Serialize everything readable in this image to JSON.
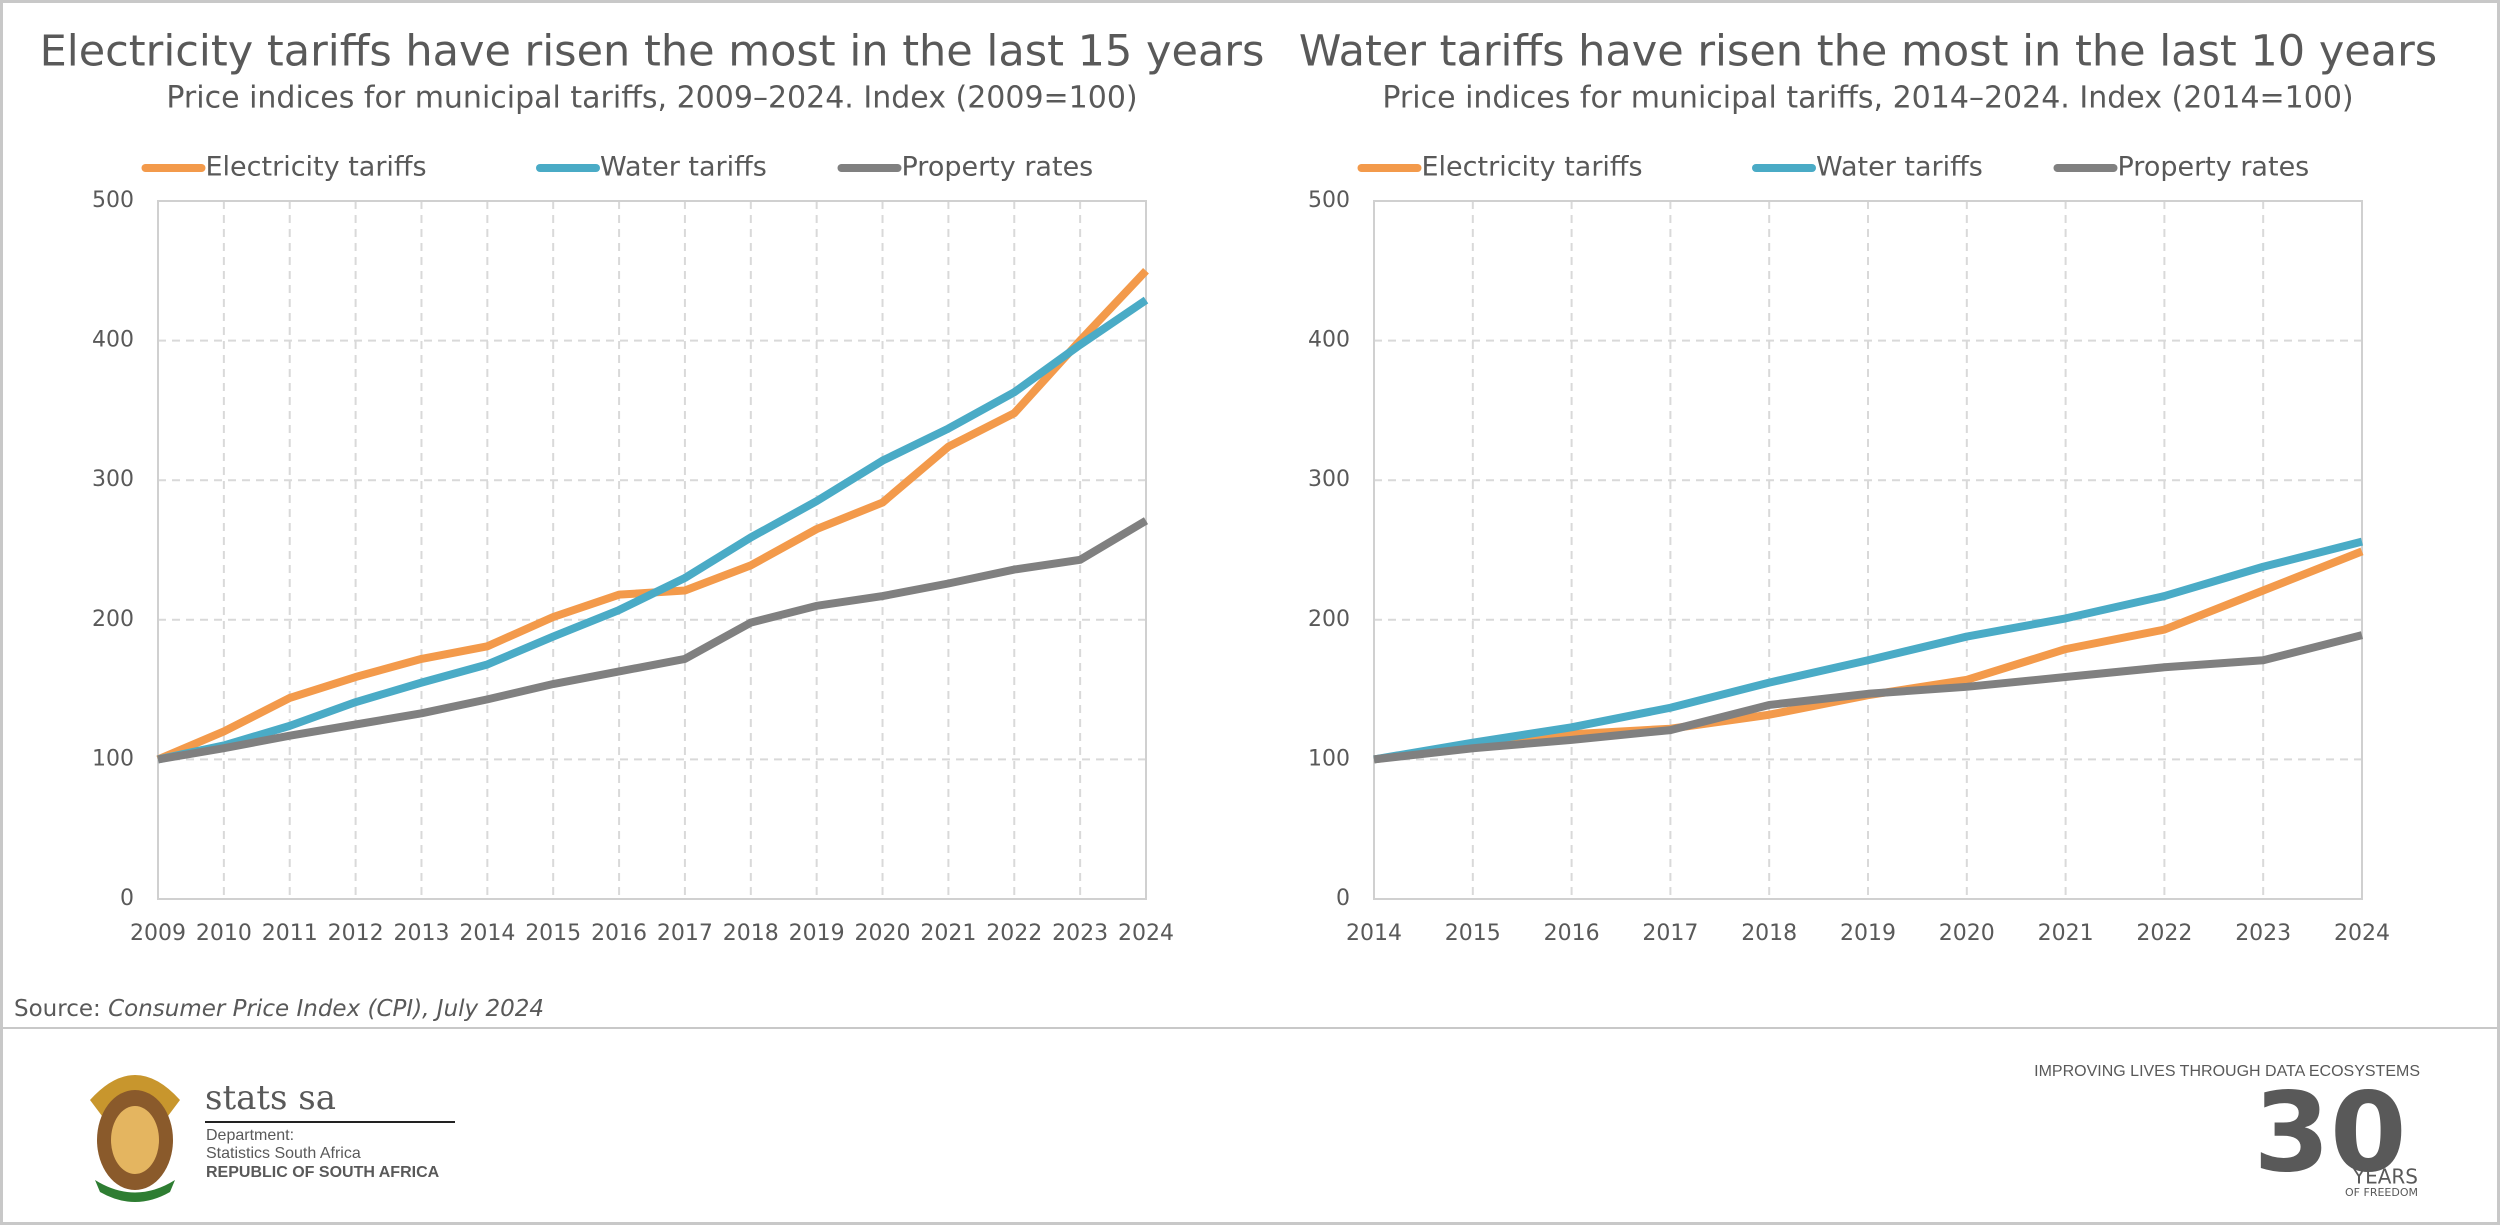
{
  "chart_data": [
    {
      "type": "line",
      "title": "Electricity tariffs have risen the most in the last 15 years",
      "subtitle": "Price indices for municipal tariffs, 2009–2024. Index (2009=100)",
      "x": [
        2009,
        2010,
        2011,
        2012,
        2013,
        2014,
        2015,
        2016,
        2017,
        2018,
        2019,
        2020,
        2021,
        2022,
        2023,
        2024
      ],
      "series": [
        {
          "name": "Electricity tariffs",
          "color": "#f39a4b",
          "values": [
            100,
            120,
            144,
            159,
            172,
            181,
            202,
            218,
            221,
            239,
            265,
            284,
            324,
            348,
            400,
            450
          ]
        },
        {
          "name": "Water tariffs",
          "color": "#4aabc6",
          "values": [
            100,
            110,
            124,
            141,
            155,
            168,
            188,
            207,
            230,
            259,
            285,
            314,
            337,
            363,
            397,
            429
          ]
        },
        {
          "name": "Property rates",
          "color": "#808080",
          "values": [
            100,
            108,
            117,
            125,
            133,
            143,
            154,
            163,
            172,
            198,
            210,
            217,
            226,
            236,
            243,
            271
          ]
        }
      ],
      "xlim": [
        2009,
        2024
      ],
      "xticks": [
        2009,
        2010,
        2011,
        2012,
        2013,
        2014,
        2015,
        2016,
        2017,
        2018,
        2019,
        2020,
        2021,
        2022,
        2023,
        2024
      ],
      "ylim": [
        0,
        500
      ],
      "yticks": [
        0,
        100,
        200,
        300,
        400,
        500
      ],
      "grid": true,
      "legend": "top"
    },
    {
      "type": "line",
      "title": "Water tariffs have risen the most in the last 10 years",
      "subtitle": "Price indices for municipal tariffs, 2014–2024. Index (2014=100)",
      "x": [
        2014,
        2015,
        2016,
        2017,
        2018,
        2019,
        2020,
        2021,
        2022,
        2023,
        2024
      ],
      "series": [
        {
          "name": "Electricity tariffs",
          "color": "#f39a4b",
          "values": [
            100,
            110,
            118,
            122,
            132,
            146,
            157,
            179,
            193,
            221,
            249
          ]
        },
        {
          "name": "Water tariffs",
          "color": "#4aabc6",
          "values": [
            100,
            112,
            123,
            137,
            155,
            171,
            188,
            201,
            217,
            238,
            256
          ]
        },
        {
          "name": "Property rates",
          "color": "#808080",
          "values": [
            100,
            108,
            114,
            121,
            139,
            147,
            152,
            159,
            166,
            171,
            189
          ]
        }
      ],
      "xlim": [
        2014,
        2024
      ],
      "xticks": [
        2014,
        2015,
        2016,
        2017,
        2018,
        2019,
        2020,
        2021,
        2022,
        2023,
        2024
      ],
      "ylim": [
        0,
        500
      ],
      "yticks": [
        0,
        100,
        200,
        300,
        400,
        500
      ],
      "grid": true,
      "legend": "top"
    }
  ],
  "source": {
    "label": "Source:",
    "text": "Consumer Price Index (CPI), July 2024"
  },
  "footer": {
    "brand": "stats sa",
    "department": "Department:",
    "org": "Statistics South Africa",
    "country": "REPUBLIC OF SOUTH AFRICA",
    "slogan": "IMPROVING LIVES THROUGH DATA ECOSYSTEMS",
    "number": "30",
    "years": "YEARS",
    "freedom": "OF FREEDOM"
  }
}
